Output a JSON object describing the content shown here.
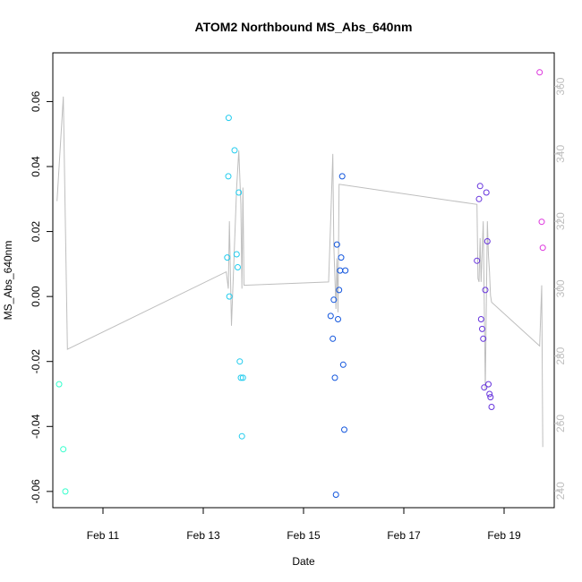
{
  "chart_data": {
    "type": "scatter",
    "title": "ATOM2 Northbound MS_Abs_640nm",
    "xlabel": "Date",
    "ylabel": "MS_Abs_640nm",
    "xlim": [
      "2024-02-10T00:00",
      "2024-02-20T00:00"
    ],
    "ylim": [
      -0.065,
      0.075
    ],
    "x_ticks": [
      {
        "date": "2024-02-11T00:00",
        "label": "Feb 11"
      },
      {
        "date": "2024-02-13T00:00",
        "label": "Feb 13"
      },
      {
        "date": "2024-02-15T00:00",
        "label": "Feb 15"
      },
      {
        "date": "2024-02-17T00:00",
        "label": "Feb 17"
      },
      {
        "date": "2024-02-19T00:00",
        "label": "Feb 19"
      }
    ],
    "y_ticks": [
      "-0.06",
      "-0.04",
      "-0.02",
      "0.00",
      "0.02",
      "0.04",
      "0.06"
    ],
    "y2_lim": [
      235,
      370
    ],
    "y2_ticks": [
      "240",
      "260",
      "280",
      "300",
      "320",
      "340",
      "360"
    ],
    "grid": false,
    "legend": "none",
    "line_color": "#bebebe",
    "point_series": [
      {
        "color": "#33ffcc",
        "x": [
          "2024-02-10T03:00",
          "2024-02-10T05:00",
          "2024-02-10T06:00"
        ],
        "y": [
          -0.027,
          -0.047,
          -0.06
        ]
      },
      {
        "color": "#22ccee",
        "x": [
          "2024-02-13T11:30",
          "2024-02-13T12:00",
          "2024-02-13T12:10",
          "2024-02-13T12:30",
          "2024-02-13T15:00",
          "2024-02-13T16:00",
          "2024-02-13T16:30",
          "2024-02-13T17:00",
          "2024-02-13T17:30",
          "2024-02-13T18:00",
          "2024-02-13T18:30",
          "2024-02-13T19:00"
        ],
        "y": [
          0.012,
          0.037,
          0.055,
          0.0,
          0.045,
          0.013,
          0.009,
          0.032,
          -0.02,
          -0.025,
          -0.043,
          -0.025
        ]
      },
      {
        "color": "#1155dd",
        "x": [
          "2024-02-15T13:00",
          "2024-02-15T14:00",
          "2024-02-15T14:30",
          "2024-02-15T15:00",
          "2024-02-15T15:30",
          "2024-02-15T16:00",
          "2024-02-15T16:30",
          "2024-02-15T17:00",
          "2024-02-15T17:30",
          "2024-02-15T18:00",
          "2024-02-15T18:30",
          "2024-02-15T19:00",
          "2024-02-15T19:30",
          "2024-02-15T20:00"
        ],
        "y": [
          -0.006,
          -0.013,
          -0.001,
          -0.025,
          -0.061,
          0.016,
          -0.007,
          0.002,
          0.008,
          0.012,
          0.037,
          -0.021,
          -0.041,
          0.008
        ]
      },
      {
        "color": "#6633dd",
        "x": [
          "2024-02-18T11:00",
          "2024-02-18T12:00",
          "2024-02-18T12:30",
          "2024-02-18T13:00",
          "2024-02-18T13:30",
          "2024-02-18T14:00",
          "2024-02-18T14:30",
          "2024-02-18T15:00",
          "2024-02-18T15:30",
          "2024-02-18T16:00",
          "2024-02-18T16:30",
          "2024-02-18T17:00",
          "2024-02-18T17:30",
          "2024-02-18T18:00"
        ],
        "y": [
          0.011,
          0.03,
          0.034,
          -0.007,
          -0.01,
          -0.013,
          -0.028,
          0.002,
          0.032,
          0.017,
          -0.027,
          -0.03,
          -0.031,
          -0.034
        ]
      },
      {
        "color": "#dd33dd",
        "x": [
          "2024-02-19T17:00",
          "2024-02-19T18:00",
          "2024-02-19T18:30"
        ],
        "y": [
          0.069,
          0.023,
          0.015
        ]
      }
    ],
    "line_series": {
      "x": [
        "2024-02-10T02:00",
        "2024-02-10T05:00",
        "2024-02-10T07:00",
        "2024-02-13T11:00",
        "2024-02-13T12:00",
        "2024-02-13T12:30",
        "2024-02-13T13:30",
        "2024-02-13T16:00",
        "2024-02-13T17:00",
        "2024-02-13T18:00",
        "2024-02-13T18:30",
        "2024-02-13T19:00",
        "2024-02-13T19:30",
        "2024-02-15T12:00",
        "2024-02-15T13:00",
        "2024-02-15T14:00",
        "2024-02-15T14:30",
        "2024-02-15T15:30",
        "2024-02-15T16:00",
        "2024-02-15T16:30",
        "2024-02-15T17:00",
        "2024-02-18T11:00",
        "2024-02-18T11:30",
        "2024-02-18T12:00",
        "2024-02-18T12:30",
        "2024-02-18T13:00",
        "2024-02-18T14:00",
        "2024-02-18T15:00",
        "2024-02-18T16:00",
        "2024-02-18T16:30",
        "2024-02-18T17:00",
        "2024-02-18T17:30",
        "2024-02-18T18:00",
        "2024-02-19T17:00",
        "2024-02-19T18:00",
        "2024-02-19T18:30"
      ],
      "y": [
        326,
        357,
        282,
        305,
        300,
        320,
        289,
        330,
        341,
        325,
        300,
        330,
        301,
        302,
        320,
        340,
        313,
        294,
        309,
        293,
        331,
        325,
        303,
        302,
        315,
        302,
        320,
        270,
        320,
        310,
        305,
        298,
        296,
        283,
        301,
        253
      ]
    }
  }
}
